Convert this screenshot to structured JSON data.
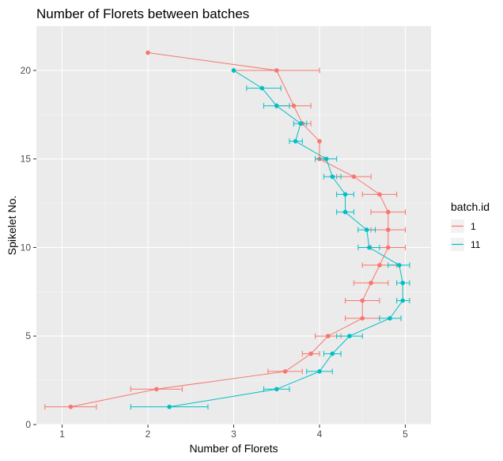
{
  "chart_data": {
    "type": "line",
    "title": "Number of Florets between batches",
    "xlabel": "Number of Florets",
    "ylabel": "Spikelet No.",
    "xlim": [
      0.7,
      5.3
    ],
    "ylim": [
      0,
      22.5
    ],
    "x_ticks": [
      1,
      2,
      3,
      4,
      5
    ],
    "y_ticks": [
      0,
      5,
      10,
      15,
      20
    ],
    "grid": true,
    "legend": {
      "title": "batch.id",
      "position": "right"
    },
    "series": [
      {
        "name": "1",
        "color": "#F8766D",
        "points": [
          {
            "y": 1,
            "x": 1.1,
            "lo": 0.8,
            "hi": 1.4
          },
          {
            "y": 2,
            "x": 2.1,
            "lo": 1.8,
            "hi": 2.4
          },
          {
            "y": 3,
            "x": 3.6,
            "lo": 3.4,
            "hi": 3.8
          },
          {
            "y": 4,
            "x": 3.9,
            "lo": 3.8,
            "hi": 4.0
          },
          {
            "y": 5,
            "x": 4.1,
            "lo": 3.95,
            "hi": 4.25
          },
          {
            "y": 6,
            "x": 4.5,
            "lo": 4.3,
            "hi": 4.7
          },
          {
            "y": 7,
            "x": 4.5,
            "lo": 4.3,
            "hi": 4.7
          },
          {
            "y": 8,
            "x": 4.6,
            "lo": 4.4,
            "hi": 4.8
          },
          {
            "y": 9,
            "x": 4.7,
            "lo": 4.5,
            "hi": 4.9
          },
          {
            "y": 10,
            "x": 4.8,
            "lo": 4.6,
            "hi": 5.0
          },
          {
            "y": 11,
            "x": 4.8,
            "lo": 4.6,
            "hi": 5.0
          },
          {
            "y": 12,
            "x": 4.8,
            "lo": 4.6,
            "hi": 5.0
          },
          {
            "y": 13,
            "x": 4.7,
            "lo": 4.5,
            "hi": 4.9
          },
          {
            "y": 14,
            "x": 4.4,
            "lo": 4.2,
            "hi": 4.6
          },
          {
            "y": 15,
            "x": 4.0,
            "lo": 3.95,
            "hi": 4.05
          },
          {
            "y": 16,
            "x": 4.0,
            "lo": 4.0,
            "hi": 4.0
          },
          {
            "y": 17,
            "x": 3.8,
            "lo": 3.7,
            "hi": 3.9
          },
          {
            "y": 18,
            "x": 3.7,
            "lo": 3.5,
            "hi": 3.9
          },
          {
            "y": 20,
            "x": 3.5,
            "lo": 3.0,
            "hi": 4.0
          },
          {
            "y": 21,
            "x": 2.0,
            "lo": 2.0,
            "hi": 2.0
          }
        ]
      },
      {
        "name": "11",
        "color": "#00BFC4",
        "points": [
          {
            "y": 1,
            "x": 2.25,
            "lo": 1.8,
            "hi": 2.7
          },
          {
            "y": 2,
            "x": 3.5,
            "lo": 3.35,
            "hi": 3.65
          },
          {
            "y": 3,
            "x": 4.0,
            "lo": 3.85,
            "hi": 4.15
          },
          {
            "y": 4,
            "x": 4.15,
            "lo": 4.05,
            "hi": 4.25
          },
          {
            "y": 5,
            "x": 4.35,
            "lo": 4.2,
            "hi": 4.5
          },
          {
            "y": 6,
            "x": 4.82,
            "lo": 4.7,
            "hi": 4.95
          },
          {
            "y": 7,
            "x": 4.97,
            "lo": 4.9,
            "hi": 5.05
          },
          {
            "y": 8,
            "x": 4.97,
            "lo": 4.9,
            "hi": 5.05
          },
          {
            "y": 9,
            "x": 4.93,
            "lo": 4.8,
            "hi": 5.05
          },
          {
            "y": 10,
            "x": 4.58,
            "lo": 4.45,
            "hi": 4.7
          },
          {
            "y": 11,
            "x": 4.55,
            "lo": 4.45,
            "hi": 4.65
          },
          {
            "y": 12,
            "x": 4.3,
            "lo": 4.2,
            "hi": 4.4
          },
          {
            "y": 13,
            "x": 4.3,
            "lo": 4.2,
            "hi": 4.4
          },
          {
            "y": 14,
            "x": 4.15,
            "lo": 4.05,
            "hi": 4.25
          },
          {
            "y": 15,
            "x": 4.08,
            "lo": 3.95,
            "hi": 4.2
          },
          {
            "y": 16,
            "x": 3.72,
            "lo": 3.65,
            "hi": 3.8
          },
          {
            "y": 17,
            "x": 3.78,
            "lo": 3.7,
            "hi": 3.85
          },
          {
            "y": 18,
            "x": 3.5,
            "lo": 3.35,
            "hi": 3.65
          },
          {
            "y": 19,
            "x": 3.33,
            "lo": 3.15,
            "hi": 3.55
          },
          {
            "y": 20,
            "x": 3.0,
            "lo": 3.0,
            "hi": 3.0
          }
        ]
      }
    ]
  }
}
